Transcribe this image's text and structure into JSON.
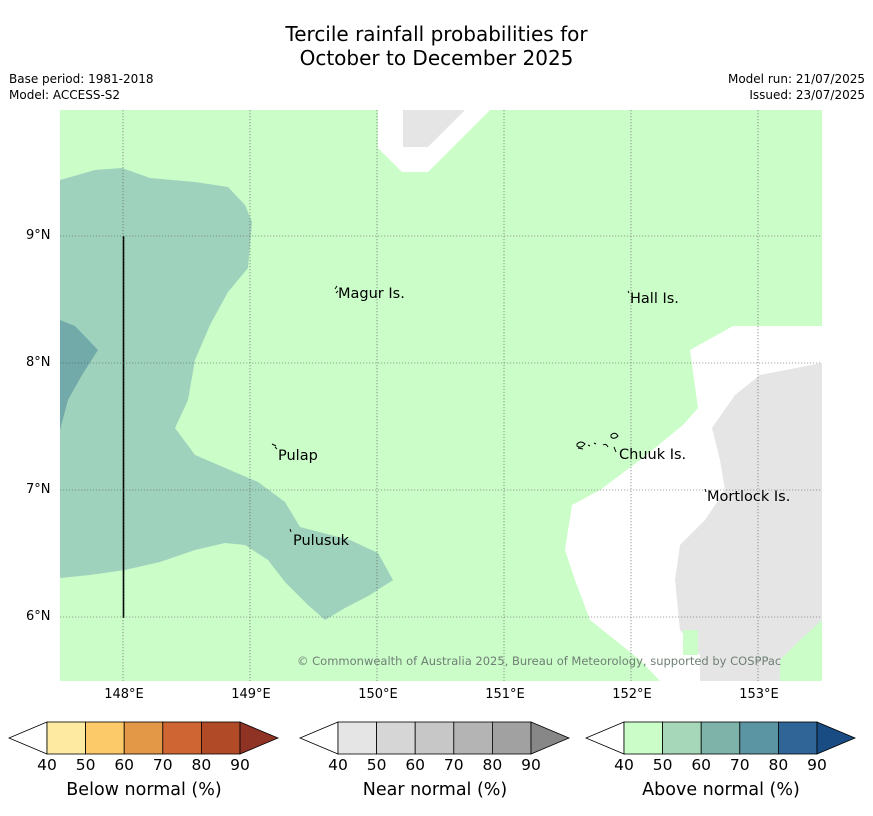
{
  "title": {
    "line1": "Tercile rainfall probabilities for",
    "line2": "October to December 2025"
  },
  "meta": {
    "base_period": "Base period: 1981-2018",
    "model": "Model: ACCESS-S2",
    "model_run": "Model run: 21/07/2025",
    "issued": "Issued: 23/07/2025"
  },
  "map": {
    "x_ticks": [
      "148°E",
      "149°E",
      "150°E",
      "151°E",
      "152°E",
      "153°E"
    ],
    "y_ticks": [
      "9°N",
      "8°N",
      "7°N",
      "6°N"
    ],
    "places": [
      "Magur Is.",
      "Hall Is.",
      "Pulap",
      "Chuuk Is.",
      "Mortlock Is.",
      "Pulusuk"
    ],
    "copyright": "© Commonwealth of Australia 2025, Bureau of Meteorology, supported by COSPPac",
    "colors": {
      "above_40_50": "#cbfdc9",
      "above_50_60": "#9fd2bc",
      "above_60_70": "#72a9a9",
      "near_40_50": "#e5e5e5",
      "no_signal": "#ffffff"
    }
  },
  "legends": [
    {
      "title": "Below normal (%)",
      "ticks": [
        "40",
        "50",
        "60",
        "70",
        "80",
        "90"
      ],
      "colors": [
        "#ffffff",
        "#feeba1",
        "#fdca69",
        "#e39847",
        "#cf6533",
        "#b14b27",
        "#8f3324"
      ]
    },
    {
      "title": "Near normal (%)",
      "ticks": [
        "40",
        "50",
        "60",
        "70",
        "80",
        "90"
      ],
      "colors": [
        "#ffffff",
        "#e5e5e5",
        "#d6d6d6",
        "#c7c7c7",
        "#b4b4b4",
        "#a1a1a1",
        "#878787"
      ]
    },
    {
      "title": "Above normal (%)",
      "ticks": [
        "40",
        "50",
        "60",
        "70",
        "80",
        "90"
      ],
      "colors": [
        "#ffffff",
        "#cbfdc9",
        "#a5d7b8",
        "#7db3a9",
        "#5b95a3",
        "#306597",
        "#184c82"
      ]
    }
  ]
}
